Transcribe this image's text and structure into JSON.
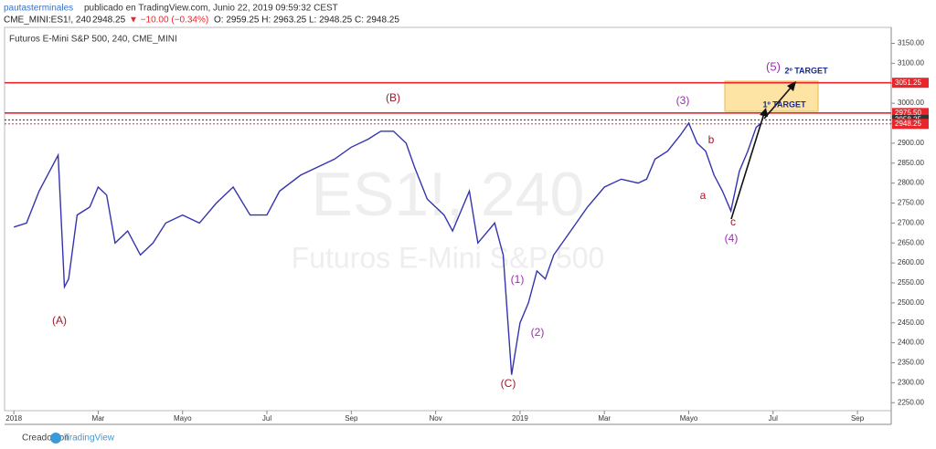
{
  "header": {
    "line1_user": "pautasterminales",
    "line1_rest": "publicado en TradingView.com, Junio 22, 2019 09:59:32 CEST",
    "line2_symbol": "CME_MINI:ES1!, 240",
    "line2_price": "2948.25",
    "line2_change": "▼ −10.00 (−0.34%)",
    "line2_ohlc": "O: 2959.25 H: 2963.25 L: 2948.25 C: 2948.25"
  },
  "footer": {
    "made_with": "Creado con",
    "brand": "TradingView"
  },
  "chart_data": {
    "type": "line",
    "title": "Futuros E-Mini S&P 500, 240, CME_MINI",
    "watermark": [
      "ES1!, 240",
      "Futuros E-Mini S&P 500"
    ],
    "x": [
      0,
      0.3,
      0.6,
      0.9,
      1.05,
      1.2,
      1.3,
      1.5,
      1.8,
      2.0,
      2.2,
      2.4,
      2.7,
      3.0,
      3.3,
      3.6,
      4.0,
      4.4,
      4.8,
      5.2,
      5.6,
      6.0,
      6.3,
      6.8,
      7.2,
      7.6,
      8.0,
      8.4,
      8.7,
      9.0,
      9.3,
      9.5,
      9.8,
      10.2,
      10.4,
      10.8,
      11.0,
      11.4,
      11.6,
      11.8,
      12.0,
      12.2,
      12.4,
      12.6,
      12.8,
      13.2,
      13.6,
      14.0,
      14.4,
      14.8,
      15.0,
      15.2,
      15.5,
      15.8,
      16.0,
      16.2,
      16.4,
      16.6,
      16.8,
      17.0,
      17.2,
      17.4,
      17.6,
      17.7
    ],
    "series": [
      {
        "name": "ES1!",
        "color": "#3434b0",
        "values": [
          2690,
          2700,
          2780,
          2840,
          2870,
          2540,
          2560,
          2720,
          2740,
          2790,
          2770,
          2650,
          2680,
          2620,
          2650,
          2700,
          2720,
          2700,
          2750,
          2790,
          2720,
          2720,
          2780,
          2820,
          2840,
          2860,
          2890,
          2910,
          2930,
          2930,
          2900,
          2840,
          2760,
          2720,
          2680,
          2780,
          2650,
          2700,
          2620,
          2320,
          2450,
          2500,
          2580,
          2560,
          2620,
          2680,
          2740,
          2790,
          2810,
          2800,
          2810,
          2860,
          2880,
          2920,
          2950,
          2900,
          2880,
          2820,
          2780,
          2730,
          2830,
          2880,
          2940,
          2948.25
        ]
      }
    ],
    "xlim": [
      -0.22,
      20.8
    ],
    "xticks": [
      {
        "value": 0,
        "label": "2018"
      },
      {
        "value": 2,
        "label": "Mar"
      },
      {
        "value": 4,
        "label": "Mayo"
      },
      {
        "value": 6,
        "label": "Jul"
      },
      {
        "value": 8,
        "label": "Sep"
      },
      {
        "value": 10,
        "label": "Nov"
      },
      {
        "value": 12,
        "label": "2019"
      },
      {
        "value": 14,
        "label": "Mar"
      },
      {
        "value": 16,
        "label": "Mayo"
      },
      {
        "value": 18,
        "label": "Jul"
      },
      {
        "value": 20,
        "label": "Sep"
      }
    ],
    "ylim": [
      2230,
      3190
    ],
    "yticks": [
      {
        "value": 2250,
        "label": "2250.00"
      },
      {
        "value": 2300,
        "label": "2300.00"
      },
      {
        "value": 2350,
        "label": "2350.00"
      },
      {
        "value": 2400,
        "label": "2400.00"
      },
      {
        "value": 2450,
        "label": "2450.00"
      },
      {
        "value": 2500,
        "label": "2500.00"
      },
      {
        "value": 2550,
        "label": "2550.00"
      },
      {
        "value": 2600,
        "label": "2600.00"
      },
      {
        "value": 2650,
        "label": "2650.00"
      },
      {
        "value": 2700,
        "label": "2700.00"
      },
      {
        "value": 2750,
        "label": "2750.00"
      },
      {
        "value": 2800,
        "label": "2800.00"
      },
      {
        "value": 2850,
        "label": "2850.00"
      },
      {
        "value": 2900,
        "label": "2900.00"
      },
      {
        "value": 2950,
        "label": "2950.00"
      },
      {
        "value": 3000,
        "label": "3000.00"
      },
      {
        "value": 3050,
        "label": "3050.00"
      },
      {
        "value": 3100,
        "label": "3100.00"
      },
      {
        "value": 3150,
        "label": "3150.00"
      }
    ],
    "price_lines": [
      {
        "value": 3051.25,
        "label": "3051.25",
        "color": "#e8262b"
      },
      {
        "value": 2975.5,
        "label": "2975.50",
        "color": "#e8262b"
      },
      {
        "value": 2958.25,
        "label": "2958.25",
        "color": "#333333"
      },
      {
        "value": 2948.25,
        "label": "2948.25",
        "color": "#e8262b"
      }
    ],
    "annotations": [
      "(A)",
      "(B)",
      "(C)",
      "(1)",
      "(2)",
      "(3)",
      "(4)",
      "(5)",
      "a",
      "b",
      "c",
      "1º TARGET",
      "2º TARGET"
    ]
  }
}
